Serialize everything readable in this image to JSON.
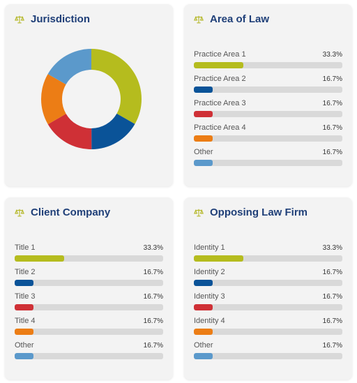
{
  "colors": {
    "title": "#1f3f78",
    "icon": "#b5b82a",
    "track": "#d9d9d9",
    "series": [
      "#b5bc1e",
      "#0a5398",
      "#cf3036",
      "#ec7d15",
      "#5b99cb"
    ]
  },
  "panels": {
    "jurisdiction": {
      "title": "Jurisdiction",
      "icon": "scales-icon"
    },
    "area_of_law": {
      "title": "Area of Law",
      "icon": "scales-icon",
      "rows": [
        {
          "label": "Practice Area 1",
          "pct": "33.3%",
          "value": 0.333
        },
        {
          "label": "Practice Area 2",
          "pct": "16.7%",
          "value": 0.167
        },
        {
          "label": "Practice Area 3",
          "pct": "16.7%",
          "value": 0.167
        },
        {
          "label": "Practice Area 4",
          "pct": "16.7%",
          "value": 0.167
        },
        {
          "label": "Other",
          "pct": "16.7%",
          "value": 0.167
        }
      ]
    },
    "client_company": {
      "title": "Client Company",
      "icon": "scales-icon",
      "rows": [
        {
          "label": "Title 1",
          "pct": "33.3%",
          "value": 0.333
        },
        {
          "label": "Title 2",
          "pct": "16.7%",
          "value": 0.167
        },
        {
          "label": "Title 3",
          "pct": "16.7%",
          "value": 0.167
        },
        {
          "label": "Title 4",
          "pct": "16.7%",
          "value": 0.167
        },
        {
          "label": "Other",
          "pct": "16.7%",
          "value": 0.167
        }
      ]
    },
    "opposing_law_firm": {
      "title": "Opposing Law Firm",
      "icon": "scales-icon",
      "rows": [
        {
          "label": "Identity 1",
          "pct": "33.3%",
          "value": 0.333
        },
        {
          "label": "Identity 2",
          "pct": "16.7%",
          "value": 0.167
        },
        {
          "label": "Identity 3",
          "pct": "16.7%",
          "value": 0.167
        },
        {
          "label": "Identity 4",
          "pct": "16.7%",
          "value": 0.167
        },
        {
          "label": "Other",
          "pct": "16.7%",
          "value": 0.167
        }
      ]
    }
  },
  "chart_data": [
    {
      "type": "pie",
      "title": "Jurisdiction",
      "donut": true,
      "values": [
        33.3,
        16.7,
        16.7,
        16.7,
        16.7
      ]
    },
    {
      "type": "bar",
      "orientation": "horizontal",
      "title": "Area of Law",
      "categories": [
        "Practice Area 1",
        "Practice Area 2",
        "Practice Area 3",
        "Practice Area 4",
        "Other"
      ],
      "values": [
        33.3,
        16.7,
        16.7,
        16.7,
        16.7
      ],
      "unit": "%"
    },
    {
      "type": "bar",
      "orientation": "horizontal",
      "title": "Client Company",
      "categories": [
        "Title 1",
        "Title 2",
        "Title 3",
        "Title 4",
        "Other"
      ],
      "values": [
        33.3,
        16.7,
        16.7,
        16.7,
        16.7
      ],
      "unit": "%"
    },
    {
      "type": "bar",
      "orientation": "horizontal",
      "title": "Opposing Law Firm",
      "categories": [
        "Identity 1",
        "Identity 2",
        "Identity 3",
        "Identity 4",
        "Other"
      ],
      "values": [
        33.3,
        16.7,
        16.7,
        16.7,
        16.7
      ],
      "unit": "%"
    }
  ]
}
